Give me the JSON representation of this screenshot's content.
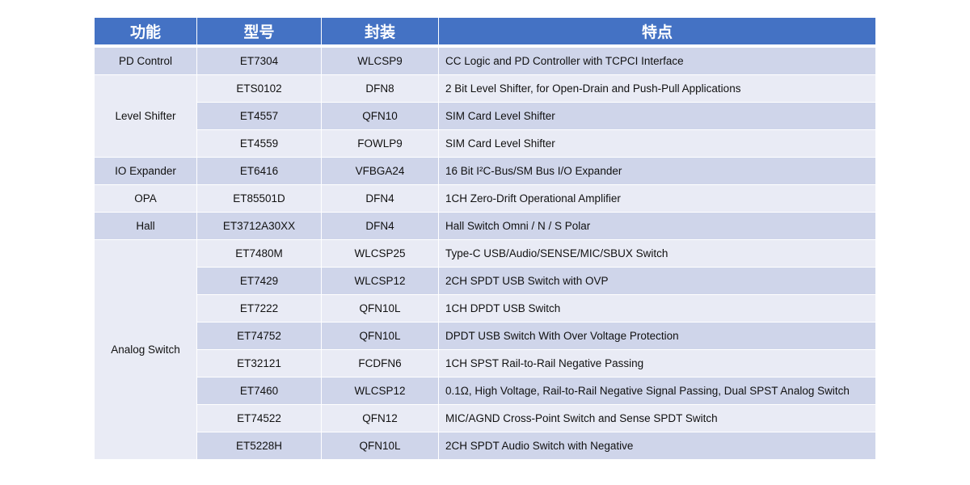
{
  "header": {
    "function": "功能",
    "model": "型号",
    "package": "封装",
    "features": "特点"
  },
  "colors": {
    "header": "#4472c4",
    "row_dark": "#cfd5ea",
    "row_light": "#e9ebf5"
  },
  "groups": [
    {
      "function": "PD Control",
      "rows": [
        {
          "model": "ET7304",
          "package": "WLCSP9",
          "features": "CC Logic and PD Controller with TCPCI Interface"
        }
      ]
    },
    {
      "function": "Level Shifter",
      "rows": [
        {
          "model": "ETS0102",
          "package": "DFN8",
          "features": "2 Bit Level Shifter, for Open-Drain and Push-Pull Applications"
        },
        {
          "model": "ET4557",
          "package": "QFN10",
          "features": "SIM Card Level Shifter"
        },
        {
          "model": "ET4559",
          "package": "FOWLP9",
          "features": "SIM Card Level Shifter"
        }
      ]
    },
    {
      "function": "IO Expander",
      "rows": [
        {
          "model": "ET6416",
          "package": "VFBGA24",
          "features": "16 Bit I²C-Bus/SM Bus I/O Expander"
        }
      ]
    },
    {
      "function": "OPA",
      "rows": [
        {
          "model": "ET85501D",
          "package": "DFN4",
          "features": "1CH Zero-Drift Operational Amplifier"
        }
      ]
    },
    {
      "function": "Hall",
      "rows": [
        {
          "model": "ET3712A30XX",
          "package": "DFN4",
          "features": "Hall Switch Omni / N / S Polar"
        }
      ]
    },
    {
      "function": "Analog Switch",
      "rows": [
        {
          "model": "ET7480M",
          "package": "WLCSP25",
          "features": "Type-C USB/Audio/SENSE/MIC/SBUX Switch"
        },
        {
          "model": "ET7429",
          "package": "WLCSP12",
          "features": "2CH SPDT USB Switch with OVP"
        },
        {
          "model": "ET7222",
          "package": "QFN10L",
          "features": "1CH DPDT USB Switch"
        },
        {
          "model": "ET74752",
          "package": "QFN10L",
          "features": "DPDT USB Switch With Over Voltage Protection"
        },
        {
          "model": "ET32121",
          "package": "FCDFN6",
          "features": "1CH SPST Rail-to-Rail Negative Passing"
        },
        {
          "model": "ET7460",
          "package": "WLCSP12",
          "features": "0.1Ω, High Voltage, Rail-to-Rail Negative Signal Passing, Dual SPST Analog Switch"
        },
        {
          "model": "ET74522",
          "package": "QFN12",
          "features": "MIC/AGND Cross-Point Switch and Sense SPDT Switch"
        },
        {
          "model": "ET5228H",
          "package": "QFN10L",
          "features": "2CH SPDT Audio Switch with Negative"
        }
      ]
    }
  ]
}
